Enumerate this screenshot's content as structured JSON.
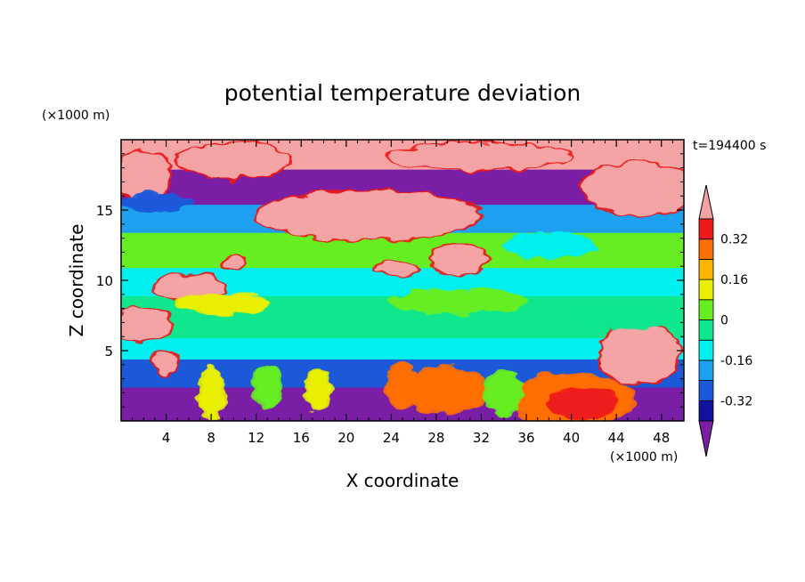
{
  "chart_data": {
    "type": "heatmap",
    "title": "potential temperature deviation",
    "xlabel": "X coordinate",
    "ylabel": "Z coordinate",
    "x_unit": "(×1000 m)",
    "z_unit": "(×1000 m)",
    "time_label": "t=194400 s",
    "xlim": [
      0,
      50
    ],
    "zlim": [
      0,
      20
    ],
    "x_ticks": [
      4,
      8,
      12,
      16,
      20,
      24,
      28,
      32,
      36,
      40,
      44,
      48
    ],
    "z_ticks": [
      5,
      10,
      15
    ],
    "colorbar": {
      "levels": [
        -0.4,
        -0.32,
        -0.24,
        -0.16,
        -0.08,
        0,
        0.08,
        0.16,
        0.24,
        0.32,
        0.4
      ],
      "tick_labels": [
        "-0.32",
        "-0.16",
        "0",
        "0.16",
        "0.32"
      ],
      "tick_values": [
        -0.32,
        -0.16,
        0,
        0.16,
        0.32
      ],
      "colors": [
        "#7a1ea6",
        "#1212a0",
        "#1b59d9",
        "#1ea0f0",
        "#00f0f0",
        "#10e68c",
        "#66ee22",
        "#e8f000",
        "#ffb400",
        "#ff6e00",
        "#ee1a1a",
        "#f4a4a4"
      ]
    },
    "bands": [
      {
        "zmin": 0,
        "zmax": 2.5,
        "value": -0.44
      },
      {
        "zmin": 2.5,
        "zmax": 4.5,
        "value": -0.3
      },
      {
        "zmin": 4.5,
        "zmax": 6,
        "value": -0.12
      },
      {
        "zmin": 6,
        "zmax": 9,
        "value": -0.02
      },
      {
        "zmin": 9,
        "zmax": 11,
        "value": -0.1
      },
      {
        "zmin": 11,
        "zmax": 13.5,
        "value": 0.02
      },
      {
        "zmin": 13.5,
        "zmax": 15.5,
        "value": -0.2
      },
      {
        "zmin": 15.5,
        "zmax": 18,
        "value": -0.44
      },
      {
        "zmin": 18,
        "zmax": 20,
        "value": 0.44
      }
    ],
    "blobs": [
      {
        "x": 2,
        "z": 17.5,
        "rx": 2.5,
        "rz": 1.8,
        "value": 0.44
      },
      {
        "x": 10,
        "z": 18.5,
        "rx": 5,
        "rz": 1.2,
        "value": 0.44
      },
      {
        "x": 22,
        "z": 14.6,
        "rx": 10,
        "rz": 1.7,
        "value": 0.44
      },
      {
        "x": 32,
        "z": 18.8,
        "rx": 8,
        "rz": 0.9,
        "value": 0.44
      },
      {
        "x": 46,
        "z": 16.5,
        "rx": 5,
        "rz": 1.8,
        "value": 0.44
      },
      {
        "x": 30,
        "z": 11.5,
        "rx": 2.5,
        "rz": 1.1,
        "value": 0.44
      },
      {
        "x": 24.5,
        "z": 10.8,
        "rx": 2,
        "rz": 0.35,
        "value": 0.44
      },
      {
        "x": 6,
        "z": 9.5,
        "rx": 3,
        "rz": 0.9,
        "value": 0.44
      },
      {
        "x": 10,
        "z": 11.3,
        "rx": 0.9,
        "rz": 0.6,
        "value": 0.44
      },
      {
        "x": 2,
        "z": 6.8,
        "rx": 2.4,
        "rz": 1.2,
        "value": 0.44
      },
      {
        "x": 4,
        "z": 4.2,
        "rx": 1,
        "rz": 0.9,
        "value": 0.44
      },
      {
        "x": 46,
        "z": 4.8,
        "rx": 3.5,
        "rz": 2.2,
        "value": 0.44
      },
      {
        "x": 40,
        "z": 1.5,
        "rx": 5.5,
        "rz": 1.8,
        "value": 0.3
      },
      {
        "x": 41,
        "z": 1.3,
        "rx": 3,
        "rz": 1.0,
        "value": 0.36
      },
      {
        "x": 29,
        "z": 2.2,
        "rx": 3.5,
        "rz": 1.6,
        "value": 0.26
      },
      {
        "x": 25,
        "z": 2.5,
        "rx": 1.3,
        "rz": 1.6,
        "value": 0.3
      },
      {
        "x": 8,
        "z": 2,
        "rx": 1,
        "rz": 1.8,
        "value": 0.14
      },
      {
        "x": 13,
        "z": 2.5,
        "rx": 1.2,
        "rz": 1.5,
        "value": 0.06
      },
      {
        "x": 17.5,
        "z": 2.2,
        "rx": 1,
        "rz": 1.4,
        "value": 0.1
      },
      {
        "x": 34,
        "z": 2,
        "rx": 1.5,
        "rz": 1.5,
        "value": 0.06
      },
      {
        "x": 9,
        "z": 8.3,
        "rx": 4,
        "rz": 0.7,
        "value": 0.12
      },
      {
        "x": 30,
        "z": 8.5,
        "rx": 6,
        "rz": 0.8,
        "value": 0.06
      },
      {
        "x": 44,
        "z": 7.5,
        "rx": 5,
        "rz": 0.9,
        "value": -0.06
      },
      {
        "x": 3,
        "z": 15.5,
        "rx": 3,
        "rz": 0.5,
        "value": -0.3
      },
      {
        "x": 38,
        "z": 12.5,
        "rx": 4,
        "rz": 0.8,
        "value": -0.14
      }
    ]
  }
}
